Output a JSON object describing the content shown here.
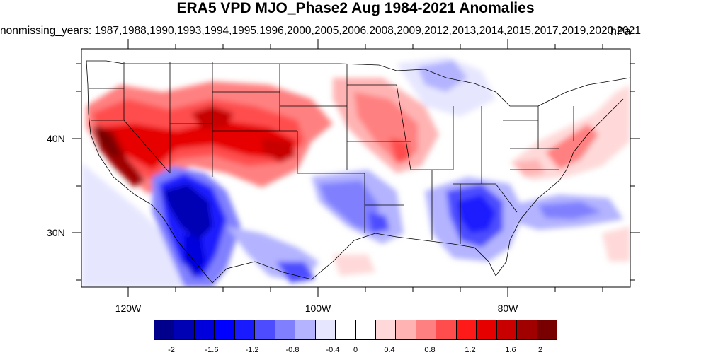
{
  "title": "ERA5 VPD MJO_Phase2 Aug 1984-2021 Anomalies",
  "subtitle": "nonmissing_years: 1987,1988,1990,1993,1994,1995,1996,2000,2005,2006,2008,2009,2012,2013,2014,2015,2017,2019,2020,2021",
  "units": "hPa",
  "axes": {
    "lat_labels": [
      "40N",
      "30N"
    ],
    "lon_labels": [
      "120W",
      "100W",
      "80W"
    ]
  },
  "colorbar": {
    "labels": [
      "-2",
      "-1.6",
      "-1.2",
      "-0.8",
      "-0.4",
      "0",
      "0.4",
      "0.8",
      "1.2",
      "1.6",
      "2"
    ],
    "colors": [
      "#00008c",
      "#0000b4",
      "#0000dc",
      "#0000ff",
      "#1a1aff",
      "#4d4dff",
      "#8080ff",
      "#b3b3ff",
      "#e6e6ff",
      "#ffffff",
      "#ffffff",
      "#ffd9d9",
      "#ffb3b3",
      "#ff8080",
      "#ff4d4d",
      "#ff1a1a",
      "#e60000",
      "#c80000",
      "#a00000",
      "#780000"
    ]
  }
}
